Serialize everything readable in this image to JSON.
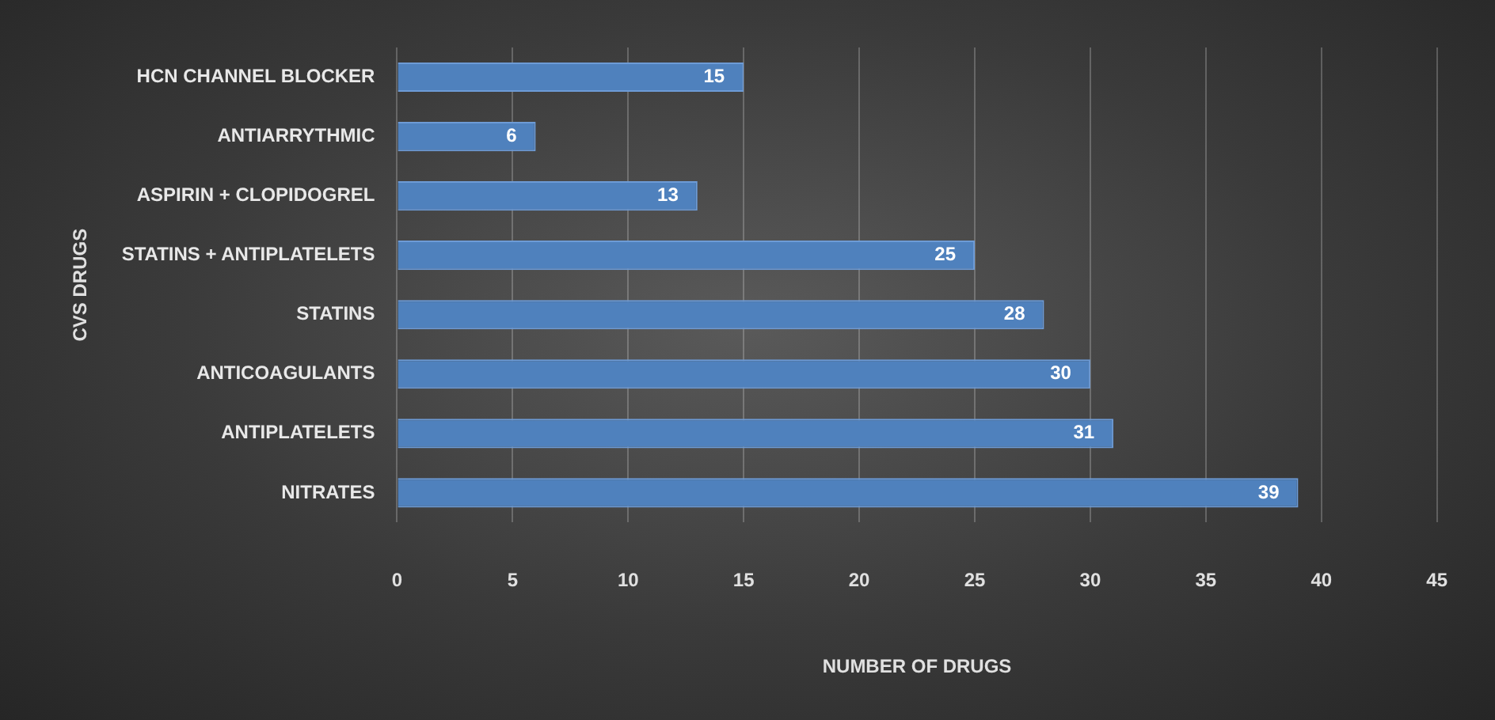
{
  "chart_data": {
    "type": "bar",
    "orientation": "horizontal",
    "xlabel": "NUMBER OF DRUGS",
    "ylabel": "CVS DRUGS",
    "categories": [
      "HCN CHANNEL BLOCKER",
      "ANTIARRYTHMIC",
      "ASPIRIN + CLOPIDOGREL",
      "STATINS + ANTIPLATELETS",
      "STATINS",
      "ANTICOAGULANTS",
      "ANTIPLATELETS",
      "NITRATES"
    ],
    "values": [
      15,
      6,
      13,
      25,
      28,
      30,
      31,
      39
    ],
    "color": "#4f81bd",
    "xlim": [
      0,
      45
    ],
    "xticks": [
      0,
      5,
      10,
      15,
      20,
      25,
      30,
      35,
      40,
      45
    ],
    "grid": "x",
    "data_labels": true,
    "legend": false
  }
}
